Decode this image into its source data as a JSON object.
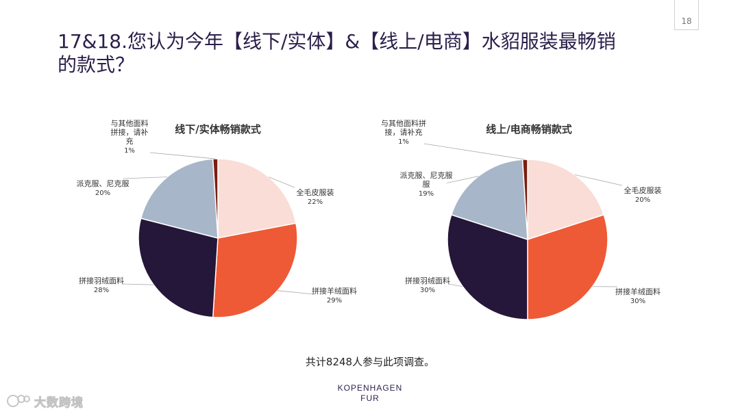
{
  "page": {
    "number": "18",
    "title_line1": "17&18.您认为今年【线下/实体】&【线上/电商】水貂服装最畅销",
    "title_line2": "的款式？",
    "footnote": "共计8248人参与此项调查。"
  },
  "logo": {
    "line1": "KOPENHAGEN",
    "line2": "FUR"
  },
  "watermark": {
    "text": "大数跨境",
    "icon": "brand-logo-icon"
  },
  "colors": {
    "全毛皮服装": "#f9ddd6",
    "拼接羊绒面料": "#ee5a35",
    "拼接羽绒面料": "#251739",
    "派克服、尼克服": "#a8b6c9",
    "与其他面料拼接，请补充": "#7a1e13"
  },
  "chart_data": [
    {
      "type": "pie",
      "title": "线下/实体畅销款式",
      "slices": [
        {
          "label": "全毛皮服装",
          "value": 22,
          "value_label": "22%"
        },
        {
          "label": "拼接羊绒面料",
          "value": 29,
          "value_label": "29%"
        },
        {
          "label": "拼接羽绒面料",
          "value": 28,
          "value_label": "28%"
        },
        {
          "label": "派克服、尼克服",
          "value": 20,
          "value_label": "20%"
        },
        {
          "label": "与其他面料拼接，请补充",
          "value": 1,
          "value_label": "1%"
        }
      ],
      "label_lines": [
        [
          "全毛皮服装"
        ],
        [
          "拼接羊绒面料"
        ],
        [
          "拼接羽绒面料"
        ],
        [
          "派克服、尼克服"
        ],
        [
          "与其他面料",
          "拼接，请补",
          "充"
        ]
      ],
      "start_angle_deg": 0,
      "direction": "clockwise"
    },
    {
      "type": "pie",
      "title": "线上/电商畅销款式",
      "slices": [
        {
          "label": "全毛皮服装",
          "value": 20,
          "value_label": "20%"
        },
        {
          "label": "拼接羊绒面料",
          "value": 30,
          "value_label": "30%"
        },
        {
          "label": "拼接羽绒面料",
          "value": 30,
          "value_label": "30%"
        },
        {
          "label": "派克服、尼克服",
          "value": 19,
          "value_label": "19%"
        },
        {
          "label": "与其他面料拼接，请补充",
          "value": 1,
          "value_label": "1%"
        }
      ],
      "label_lines": [
        [
          "全毛皮服装"
        ],
        [
          "拼接羊绒面料"
        ],
        [
          "拼接羽绒面料"
        ],
        [
          "派克服、尼克服",
          "服"
        ],
        [
          "与其他面料拼",
          "接，请补充"
        ]
      ],
      "start_angle_deg": 0,
      "direction": "clockwise"
    }
  ]
}
